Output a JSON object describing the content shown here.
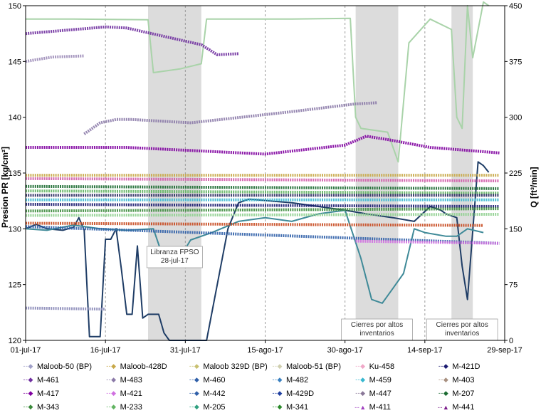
{
  "chart_data": {
    "type": "line",
    "ylabel_left": "Presion PR [kg/cm²]",
    "ylabel_right": "Q [ft³/min]",
    "x_ticks": [
      "01-jul-17",
      "16-jul-17",
      "31-jul-17",
      "15-ago-17",
      "30-ago-17",
      "14-sep-17",
      "29-sep-17"
    ],
    "xlim": [
      "2017-07-01",
      "2017-09-29"
    ],
    "ylim_left": [
      120,
      150
    ],
    "ylim_right": [
      0,
      450
    ],
    "y_ticks_left": [
      120,
      125,
      130,
      135,
      140,
      145,
      150
    ],
    "y_ticks_right": [
      0,
      75,
      150,
      225,
      300,
      375,
      450
    ],
    "grid": "vertical-dashed",
    "shaded_periods": [
      {
        "start": "2017-07-24",
        "end": "2017-08-03",
        "label_lines": [
          "Libranza FPSO",
          "28-jul-17"
        ]
      },
      {
        "start": "2017-09-01",
        "end": "2017-09-09",
        "label_lines": [
          "Cierres por altos",
          "inventarios"
        ]
      },
      {
        "start": "2017-09-19",
        "end": "2017-09-23",
        "label_lines": [
          "Cierres por altos",
          "inventarios"
        ]
      }
    ],
    "right_axis_series": [
      {
        "name": "Q gas (light green)",
        "color": "#a9d3a9",
        "x": [
          "2017-07-01",
          "2017-07-10",
          "2017-07-24",
          "2017-07-25",
          "2017-07-30",
          "2017-08-03",
          "2017-08-04",
          "2017-08-20",
          "2017-08-31",
          "2017-09-01",
          "2017-09-02",
          "2017-09-07",
          "2017-09-09",
          "2017-09-11",
          "2017-09-15",
          "2017-09-19",
          "2017-09-20",
          "2017-09-21",
          "2017-09-22",
          "2017-09-23",
          "2017-09-25",
          "2017-09-26"
        ],
        "y": [
          432,
          432,
          431,
          360,
          365,
          372,
          432,
          432,
          433,
          300,
          285,
          280,
          240,
          400,
          432,
          418,
          300,
          285,
          450,
          380,
          455,
          450
        ]
      },
      {
        "name": "Q mezcla (dark blue)",
        "color": "#1f3d66",
        "x": [
          "2017-07-01",
          "2017-07-03",
          "2017-07-05",
          "2017-07-08",
          "2017-07-10",
          "2017-07-11",
          "2017-07-12",
          "2017-07-13",
          "2017-07-15",
          "2017-07-16",
          "2017-07-17",
          "2017-07-18",
          "2017-07-19",
          "2017-07-20",
          "2017-07-21",
          "2017-07-22",
          "2017-07-23",
          "2017-07-24",
          "2017-07-26",
          "2017-07-27",
          "2017-07-28",
          "2017-08-04",
          "2017-08-08",
          "2017-08-10",
          "2017-08-12",
          "2017-08-15",
          "2017-08-20",
          "2017-08-25",
          "2017-08-30",
          "2017-09-03",
          "2017-09-08",
          "2017-09-12",
          "2017-09-15",
          "2017-09-17",
          "2017-09-18",
          "2017-09-20",
          "2017-09-21",
          "2017-09-22",
          "2017-09-24",
          "2017-09-25",
          "2017-09-26"
        ],
        "y": [
          150,
          156,
          150,
          148,
          152,
          165,
          148,
          5,
          5,
          136,
          136,
          150,
          95,
          35,
          35,
          127,
          30,
          35,
          35,
          10,
          0,
          0,
          150,
          185,
          190,
          188,
          185,
          180,
          175,
          170,
          165,
          160,
          180,
          175,
          170,
          165,
          100,
          55,
          240,
          235,
          226
        ]
      },
      {
        "name": "Q mezcla (teal)",
        "color": "#3f8a98",
        "x": [
          "2017-07-01",
          "2017-07-05",
          "2017-07-10",
          "2017-07-15",
          "2017-07-20",
          "2017-07-25",
          "2017-07-27",
          "2017-07-29",
          "2017-08-01",
          "2017-08-05",
          "2017-08-10",
          "2017-08-15",
          "2017-08-20",
          "2017-08-25",
          "2017-08-30",
          "2017-09-02",
          "2017-09-04",
          "2017-09-06",
          "2017-09-08",
          "2017-09-10",
          "2017-09-12",
          "2017-09-14",
          "2017-09-18",
          "2017-09-20",
          "2017-09-22",
          "2017-09-25"
        ],
        "y": [
          150,
          148,
          155,
          150,
          148,
          150,
          108,
          100,
          135,
          145,
          160,
          165,
          160,
          170,
          175,
          110,
          55,
          50,
          70,
          90,
          150,
          145,
          140,
          140,
          150,
          145
        ]
      }
    ],
    "left_axis_series": [
      {
        "name": "M-461",
        "color": "#7030a0",
        "x": [
          "2017-07-01",
          "2017-07-16",
          "2017-07-20",
          "2017-08-03",
          "2017-08-06",
          "2017-08-10"
        ],
        "y": [
          147.5,
          148.1,
          148.0,
          146.5,
          145.6,
          145.7
        ]
      },
      {
        "name": "Maloob-50 (BP)",
        "color": "#9c8cb8",
        "x": [
          "2017-07-01",
          "2017-07-06",
          "2017-07-12"
        ],
        "y": [
          145.0,
          145.4,
          145.5
        ]
      },
      {
        "name": "M-483",
        "color": "#8b7aa8",
        "x": [
          "2017-07-12",
          "2017-07-15",
          "2017-07-18",
          "2017-07-21",
          "2017-08-01",
          "2017-08-20",
          "2017-09-01",
          "2017-09-05"
        ],
        "y": [
          138.5,
          139.5,
          139.8,
          139.8,
          139.5,
          140.5,
          141.2,
          141.3
        ]
      },
      {
        "name": "M-417",
        "color": "#8000a0",
        "x": [
          "2017-07-01",
          "2017-07-20",
          "2017-08-15",
          "2017-08-30",
          "2017-09-03",
          "2017-09-07",
          "2017-09-15",
          "2017-09-28"
        ],
        "y": [
          137.3,
          137.3,
          136.7,
          137.5,
          138.3,
          138.0,
          137.3,
          136.8
        ]
      },
      {
        "name": "Maloob-428D",
        "color": "#c8a848",
        "x": [
          "2017-07-01",
          "2017-09-28"
        ],
        "y": [
          134.8,
          134.8
        ]
      },
      {
        "name": "M-441",
        "color": "#d05aa8",
        "x": [
          "2017-07-01",
          "2017-09-28"
        ],
        "y": [
          134.5,
          134.3
        ]
      },
      {
        "name": "M-207",
        "color": "#1a6a30",
        "x": [
          "2017-07-01",
          "2017-09-28"
        ],
        "y": [
          133.8,
          133.6
        ]
      },
      {
        "name": "M-233",
        "color": "#62b462",
        "x": [
          "2017-07-01",
          "2017-09-28"
        ],
        "y": [
          133.4,
          133.2
        ]
      },
      {
        "name": "M-447",
        "color": "#2a2a60",
        "x": [
          "2017-07-01",
          "2017-09-28"
        ],
        "y": [
          133.0,
          133.0
        ]
      },
      {
        "name": "M-459",
        "color": "#38b8d0",
        "x": [
          "2017-07-01",
          "2017-09-28"
        ],
        "y": [
          132.6,
          132.6
        ]
      },
      {
        "name": "M-421D",
        "color": "#1a1a70",
        "x": [
          "2017-07-01",
          "2017-09-28"
        ],
        "y": [
          132.2,
          132.0
        ]
      },
      {
        "name": "M-343",
        "color": "#3a8a3a",
        "x": [
          "2017-07-01",
          "2017-09-28"
        ],
        "y": [
          131.6,
          131.8
        ]
      },
      {
        "name": "M-341",
        "color": "#90d090",
        "x": [
          "2017-07-01",
          "2017-09-28"
        ],
        "y": [
          131.2,
          131.3
        ]
      },
      {
        "name": "M-460",
        "color": "#c84a20",
        "x": [
          "2017-07-01",
          "2017-09-25"
        ],
        "y": [
          130.5,
          130.3
        ]
      },
      {
        "name": "M-442",
        "color": "#2f5fa8",
        "x": [
          "2017-07-01",
          "2017-09-28"
        ],
        "y": [
          130.2,
          128.7
        ]
      },
      {
        "name": "M-421",
        "color": "#d070e0",
        "x": [
          "2017-09-01",
          "2017-09-28"
        ],
        "y": [
          128.9,
          128.7
        ]
      },
      {
        "name": "Ku-458",
        "color": "#8a8ab8",
        "x": [
          "2017-07-01",
          "2017-07-16"
        ],
        "y": [
          122.9,
          122.8
        ]
      }
    ],
    "legend": [
      {
        "label": "Maloob-50 (BP)",
        "color": "#a0a0c8",
        "marker": "◆"
      },
      {
        "label": "Maloob-428D",
        "color": "#c8a848",
        "marker": "◆"
      },
      {
        "label": "Maloob 329D (BP)",
        "color": "#c8c070",
        "marker": "◆"
      },
      {
        "label": "Maloob-51 (BP)",
        "color": "#d0d0b0",
        "marker": "◆"
      },
      {
        "label": "Ku-458",
        "color": "#f0a8c8",
        "marker": "◆"
      },
      {
        "label": "M-421D",
        "color": "#1a1a70",
        "marker": "◆"
      },
      {
        "label": "M-461",
        "color": "#7030a0",
        "marker": "◆"
      },
      {
        "label": "M-483",
        "color": "#8b7aa8",
        "marker": "◆"
      },
      {
        "label": "M-460",
        "color": "#2f5fa8",
        "marker": "◆"
      },
      {
        "label": "M-482",
        "color": "#3a80c0",
        "marker": "◆"
      },
      {
        "label": "M-459",
        "color": "#38b8d0",
        "marker": "◆"
      },
      {
        "label": "M-403",
        "color": "#a89080",
        "marker": "◆"
      },
      {
        "label": "M-417",
        "color": "#8000a0",
        "marker": "◆"
      },
      {
        "label": "M-421",
        "color": "#d070e0",
        "marker": "◆"
      },
      {
        "label": "M-442",
        "color": "#2f5fa8",
        "marker": "◆"
      },
      {
        "label": "M-429D",
        "color": "#2040a0",
        "marker": "◆"
      },
      {
        "label": "M-447",
        "color": "#8a7898",
        "marker": "◆"
      },
      {
        "label": "M-207",
        "color": "#1a6a30",
        "marker": "◆"
      },
      {
        "label": "M-343",
        "color": "#3a8a3a",
        "marker": "◆"
      },
      {
        "label": "M-233",
        "color": "#62b462",
        "marker": "◆"
      },
      {
        "label": "M-205",
        "color": "#30a080",
        "marker": "◆"
      },
      {
        "label": "M-341",
        "color": "#2a8a2a",
        "marker": "◆"
      },
      {
        "label": "M-411",
        "color": "#a040c0",
        "marker": "▲"
      },
      {
        "label": "M-441",
        "color": "#7a1a8a",
        "marker": "▲"
      }
    ]
  }
}
